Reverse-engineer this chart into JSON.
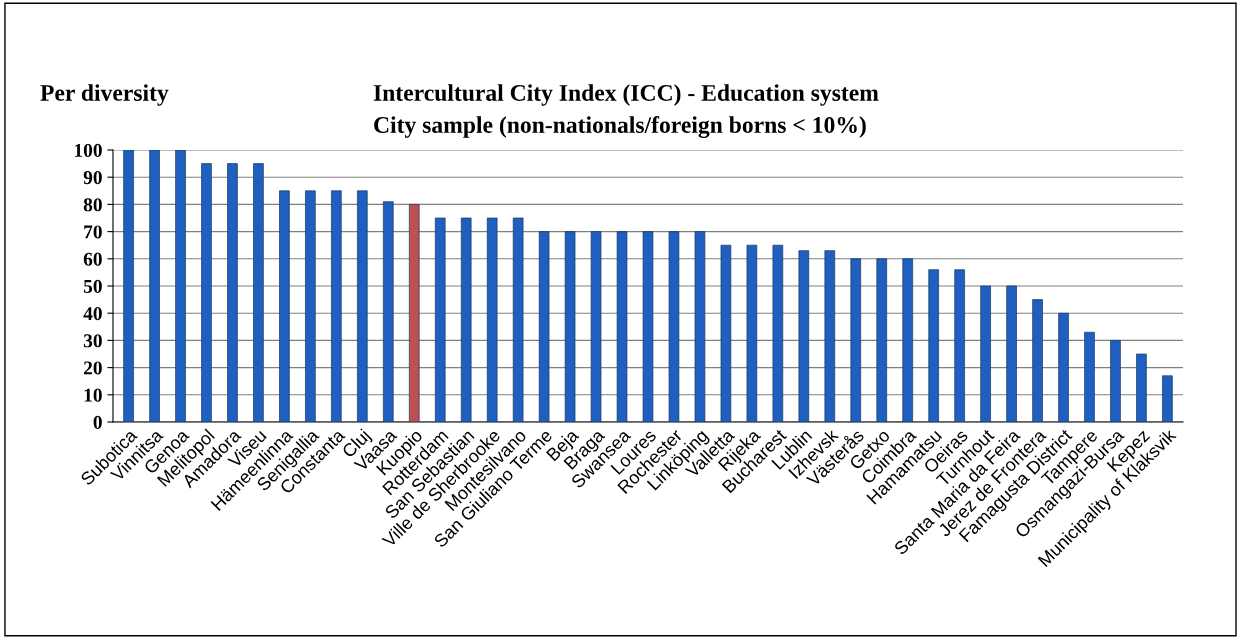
{
  "chart_data": {
    "type": "bar",
    "title": "Intercultural City Index (ICC) - Education system",
    "subtitle": "City sample (non-nationals/foreign borns < 10%)",
    "annotations": [
      "Per diversity"
    ],
    "categories": [
      "Subotica",
      "Vinnitsa",
      "Genoa",
      "Melitopol",
      "Amadora",
      "Viseu",
      "Hämeenlinna",
      "Senigallia",
      "Constanta",
      "Cluj",
      "Vaasa",
      "Kuopio",
      "Rotterdam",
      "San Sebastian",
      "Ville de Sherbrooke",
      "Montesilvano",
      "San Giuliano Terme",
      "Beja",
      "Braga",
      "Swansea",
      "Loures",
      "Rochester",
      "Linköping",
      "Valletta",
      "Rijeka",
      "Bucharest",
      "Lublin",
      "Izhevsk",
      "Västerås",
      "Getxo",
      "Coimbra",
      "Hamamatsu",
      "Oeiras",
      "Turnhout",
      "Santa Maria da Feira",
      "Jerez de Frontera",
      "Famagusta District",
      "Tampere",
      "Osmangazi-Bursa",
      "Kepez",
      "Municipality of Klaksvik"
    ],
    "values": [
      100,
      100,
      100,
      95,
      95,
      95,
      85,
      85,
      85,
      85,
      81,
      80,
      75,
      75,
      75,
      75,
      70,
      70,
      70,
      70,
      70,
      70,
      70,
      65,
      65,
      65,
      63,
      63,
      60,
      60,
      60,
      56,
      56,
      50,
      50,
      45,
      40,
      33,
      30,
      25,
      17
    ],
    "colors": [
      "#1f5fbf",
      "#1f5fbf",
      "#1f5fbf",
      "#1f5fbf",
      "#1f5fbf",
      "#1f5fbf",
      "#1f5fbf",
      "#1f5fbf",
      "#1f5fbf",
      "#1f5fbf",
      "#1f5fbf",
      "#c0504d",
      "#1f5fbf",
      "#1f5fbf",
      "#1f5fbf",
      "#1f5fbf",
      "#1f5fbf",
      "#1f5fbf",
      "#1f5fbf",
      "#1f5fbf",
      "#1f5fbf",
      "#1f5fbf",
      "#1f5fbf",
      "#1f5fbf",
      "#1f5fbf",
      "#1f5fbf",
      "#1f5fbf",
      "#1f5fbf",
      "#1f5fbf",
      "#1f5fbf",
      "#1f5fbf",
      "#1f5fbf",
      "#1f5fbf",
      "#1f5fbf",
      "#1f5fbf",
      "#1f5fbf",
      "#1f5fbf",
      "#1f5fbf",
      "#1f5fbf",
      "#1f5fbf",
      "#1f5fbf"
    ],
    "ylim": [
      0,
      100
    ],
    "yticks": [
      0,
      10,
      20,
      30,
      40,
      50,
      60,
      70,
      80,
      90,
      100
    ],
    "grid": "y",
    "legend": false
  }
}
